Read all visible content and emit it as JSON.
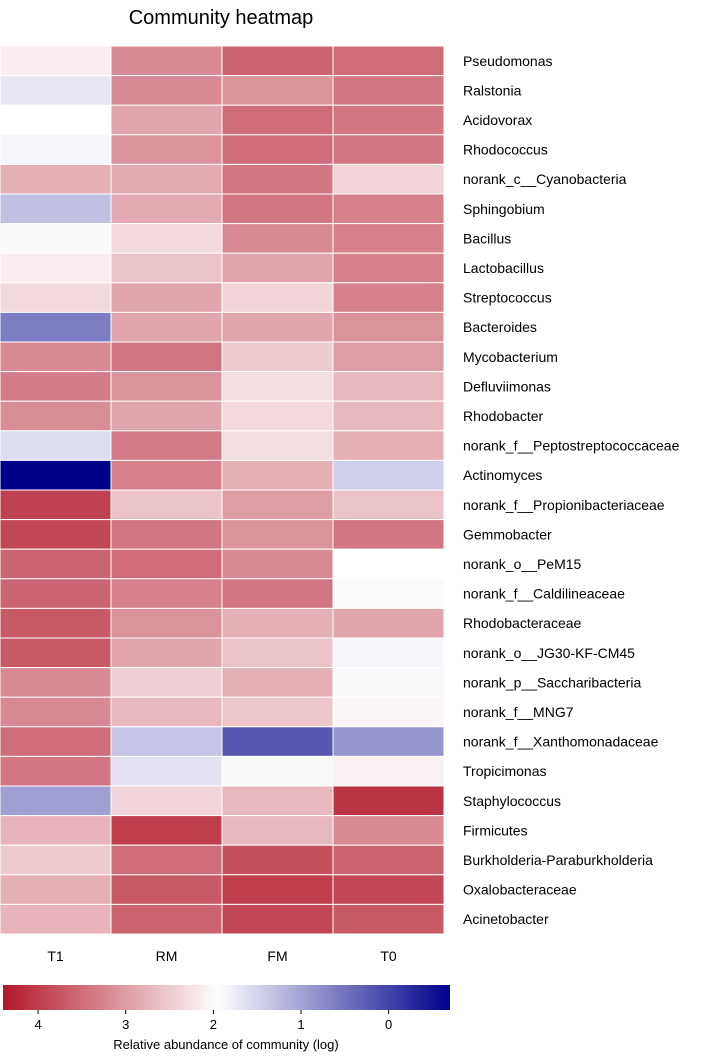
{
  "chart_data": {
    "type": "heatmap",
    "title": "Community heatmap",
    "columns": [
      "T1",
      "RM",
      "FM",
      "T0"
    ],
    "rows": [
      "Pseudomonas",
      "Ralstonia",
      "Acidovorax",
      "Rhodococcus",
      "norank_c__Cyanobacteria",
      "Sphingobium",
      "Bacillus",
      "Lactobacillus",
      "Streptococcus",
      "Bacteroides",
      "Mycobacterium",
      "Defluviimonas",
      "Rhodobacter",
      "norank_f__Peptostreptococcaceae",
      "Actinomyces",
      "norank_f__Propionibacteriaceae",
      "Gemmobacter",
      "norank_o__PeM15",
      "norank_f__Caldilineaceae",
      "Rhodobacteraceae",
      "norank_o__JG30-KF-CM45",
      "norank_p__Saccharibacteria",
      "norank_f__MNG7",
      "norank_f__Xanthomonadaceae",
      "Tropicimonas",
      "Staphylococcus",
      "Firmicutes",
      "Burkholderia-Paraburkholderia",
      "Oxalobacteraceae",
      "Acinetobacter"
    ],
    "values": [
      [
        2.15,
        3.2,
        3.6,
        3.5
      ],
      [
        1.7,
        3.2,
        3.1,
        3.4
      ],
      [
        1.95,
        2.9,
        3.5,
        3.4
      ],
      [
        1.85,
        3.1,
        3.5,
        3.4
      ],
      [
        2.8,
        2.85,
        3.4,
        2.4
      ],
      [
        1.3,
        2.85,
        3.4,
        3.3
      ],
      [
        1.9,
        2.35,
        3.2,
        3.3
      ],
      [
        2.15,
        2.6,
        2.9,
        3.3
      ],
      [
        2.35,
        2.9,
        2.4,
        3.3
      ],
      [
        0.6,
        2.9,
        2.9,
        3.1
      ],
      [
        3.2,
        3.4,
        2.5,
        3.0
      ],
      [
        3.35,
        3.1,
        2.3,
        2.7
      ],
      [
        3.15,
        2.9,
        2.35,
        2.7
      ],
      [
        1.6,
        3.35,
        2.3,
        2.8
      ],
      [
        -0.7,
        3.3,
        2.8,
        1.45
      ],
      [
        3.95,
        2.6,
        3.0,
        2.6
      ],
      [
        3.9,
        3.4,
        3.1,
        3.4
      ],
      [
        3.6,
        3.5,
        3.2,
        1.95
      ],
      [
        3.6,
        3.3,
        3.4,
        2.0
      ],
      [
        3.7,
        3.1,
        2.8,
        2.9
      ],
      [
        3.7,
        2.9,
        2.6,
        1.85
      ],
      [
        3.2,
        2.45,
        2.8,
        1.9
      ],
      [
        3.2,
        2.7,
        2.55,
        2.05
      ],
      [
        3.5,
        1.35,
        0.2,
        0.85
      ],
      [
        3.4,
        1.65,
        1.9,
        2.1
      ],
      [
        0.95,
        2.4,
        2.7,
        4.1
      ],
      [
        2.75,
        4.0,
        2.7,
        3.2
      ],
      [
        2.5,
        3.5,
        3.8,
        3.6
      ],
      [
        2.8,
        3.7,
        4.0,
        3.9
      ],
      [
        2.75,
        3.6,
        3.9,
        3.7
      ]
    ],
    "colorbar": {
      "label": "Relative abundance of community (log)",
      "ticks": [
        4,
        3,
        2,
        1,
        0
      ],
      "range": [
        4.4,
        -0.7
      ],
      "low_color": "#b2182b",
      "mid_color": "#ffffff",
      "high_color": "#00008b",
      "mid_value": 1.95
    },
    "legend_position": "bottom"
  }
}
